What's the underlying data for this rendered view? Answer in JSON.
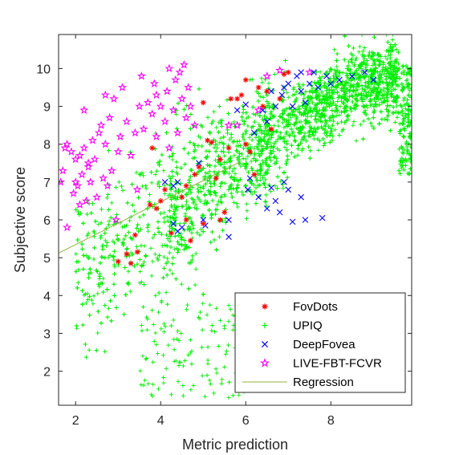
{
  "chart_data": {
    "type": "scatter",
    "xlabel": "Metric prediction",
    "ylabel": "Subjective score",
    "xlim": [
      1.6,
      9.9
    ],
    "ylim": [
      1.1,
      10.9
    ],
    "xticks": [
      2,
      4,
      6,
      8
    ],
    "yticks": [
      2,
      3,
      4,
      5,
      6,
      7,
      8,
      9,
      10
    ],
    "grid": false,
    "legend_position": "bottom-right",
    "series": [
      {
        "name": "FovDots",
        "marker": "asterisk",
        "color": "#ff0000",
        "points": [
          [
            3.0,
            4.9
          ],
          [
            3.2,
            5.1
          ],
          [
            3.3,
            4.85
          ],
          [
            3.45,
            5.15
          ],
          [
            3.4,
            5.6
          ],
          [
            3.75,
            6.4
          ],
          [
            3.8,
            7.9
          ],
          [
            4.0,
            6.5
          ],
          [
            4.1,
            6.8
          ],
          [
            4.25,
            5.65
          ],
          [
            4.5,
            6.6
          ],
          [
            4.6,
            6.9
          ],
          [
            4.7,
            5.45
          ],
          [
            4.9,
            7.4
          ],
          [
            5.0,
            9.1
          ],
          [
            5.1,
            8.1
          ],
          [
            5.2,
            8.05
          ],
          [
            5.3,
            7.1
          ],
          [
            5.4,
            7.6
          ],
          [
            5.6,
            7.9
          ],
          [
            5.65,
            9.2
          ],
          [
            5.8,
            9.2
          ],
          [
            5.9,
            9.3
          ],
          [
            6.0,
            9.7
          ],
          [
            6.1,
            7.8
          ],
          [
            6.2,
            7.2
          ],
          [
            6.3,
            9.5
          ],
          [
            6.4,
            9.0
          ],
          [
            6.5,
            9.4
          ],
          [
            6.6,
            8.4
          ],
          [
            6.8,
            9.2
          ],
          [
            7.0,
            9.9
          ],
          [
            6.9,
            9.85
          ],
          [
            5.4,
            6.0
          ],
          [
            5.0,
            5.9
          ],
          [
            4.6,
            6.0
          ],
          [
            4.8,
            7.2
          ],
          [
            5.5,
            6.2
          ],
          [
            6.0,
            8.0
          ],
          [
            3.9,
            6.3
          ]
        ]
      },
      {
        "name": "UPIQ",
        "marker": "plus",
        "color": "#00ee00",
        "points": []
      },
      {
        "name": "DeepFovea",
        "marker": "x",
        "color": "#0000ff",
        "points": [
          [
            4.1,
            7.0
          ],
          [
            4.3,
            6.9
          ],
          [
            4.3,
            5.9
          ],
          [
            4.4,
            5.7
          ],
          [
            4.5,
            5.8
          ],
          [
            4.4,
            7.0
          ],
          [
            4.9,
            7.5
          ],
          [
            5.0,
            6.0
          ],
          [
            5.05,
            5.85
          ],
          [
            5.6,
            5.55
          ],
          [
            5.6,
            6.0
          ],
          [
            6.05,
            6.8
          ],
          [
            6.1,
            7.1
          ],
          [
            6.3,
            6.6
          ],
          [
            6.5,
            6.3
          ],
          [
            6.6,
            6.85
          ],
          [
            6.7,
            6.5
          ],
          [
            6.8,
            6.2
          ],
          [
            6.9,
            7.0
          ],
          [
            7.0,
            6.8
          ],
          [
            7.1,
            5.95
          ],
          [
            7.3,
            6.6
          ],
          [
            7.4,
            6.0
          ],
          [
            7.8,
            6.05
          ],
          [
            6.2,
            8.3
          ],
          [
            6.4,
            8.9
          ],
          [
            6.6,
            9.4
          ],
          [
            6.7,
            9.0
          ],
          [
            6.85,
            9.3
          ],
          [
            7.0,
            9.6
          ],
          [
            7.1,
            9.0
          ],
          [
            7.2,
            9.8
          ],
          [
            7.3,
            9.4
          ],
          [
            7.4,
            9.1
          ],
          [
            7.5,
            9.6
          ],
          [
            7.6,
            9.9
          ],
          [
            7.7,
            9.5
          ],
          [
            7.9,
            9.8
          ],
          [
            8.0,
            9.6
          ],
          [
            8.2,
            9.7
          ],
          [
            8.5,
            9.8
          ],
          [
            8.8,
            9.9
          ],
          [
            9.0,
            9.7
          ],
          [
            5.8,
            8.9
          ],
          [
            6.0,
            9.05
          ],
          [
            6.9,
            9.5
          ],
          [
            7.3,
            9.9
          ],
          [
            6.5,
            8.6
          ]
        ]
      },
      {
        "name": "LIVE-FBT-FCVR",
        "marker": "star",
        "color": "#ff00ff",
        "points": [
          [
            1.65,
            7.0
          ],
          [
            1.7,
            7.3
          ],
          [
            1.75,
            7.9
          ],
          [
            1.8,
            8.0
          ],
          [
            1.8,
            5.8
          ],
          [
            1.9,
            7.8
          ],
          [
            1.95,
            6.7
          ],
          [
            2.0,
            7.0
          ],
          [
            2.0,
            7.6
          ],
          [
            2.05,
            6.9
          ],
          [
            2.1,
            7.7
          ],
          [
            2.15,
            7.2
          ],
          [
            2.2,
            7.9
          ],
          [
            2.2,
            8.9
          ],
          [
            2.25,
            6.5
          ],
          [
            2.3,
            7.4
          ],
          [
            2.35,
            7.0
          ],
          [
            2.4,
            8.1
          ],
          [
            2.45,
            7.6
          ],
          [
            2.5,
            6.6
          ],
          [
            2.55,
            8.3
          ],
          [
            2.6,
            8.5
          ],
          [
            2.65,
            7.1
          ],
          [
            2.7,
            8.0
          ],
          [
            2.75,
            6.9
          ],
          [
            2.8,
            8.7
          ],
          [
            2.85,
            7.3
          ],
          [
            2.9,
            9.2
          ],
          [
            2.95,
            6.0
          ],
          [
            3.0,
            7.8
          ],
          [
            3.05,
            8.2
          ],
          [
            3.1,
            9.5
          ],
          [
            3.2,
            8.6
          ],
          [
            3.3,
            7.7
          ],
          [
            3.4,
            8.3
          ],
          [
            3.45,
            6.8
          ],
          [
            3.5,
            9.0
          ],
          [
            3.55,
            9.8
          ],
          [
            3.6,
            8.4
          ],
          [
            3.7,
            9.1
          ],
          [
            3.8,
            8.8
          ],
          [
            3.85,
            9.6
          ],
          [
            3.9,
            8.2
          ],
          [
            4.0,
            9.0
          ],
          [
            4.1,
            8.6
          ],
          [
            4.15,
            9.4
          ],
          [
            4.2,
            10.0
          ],
          [
            4.3,
            8.9
          ],
          [
            4.35,
            9.7
          ],
          [
            4.4,
            8.3
          ],
          [
            4.5,
            9.2
          ],
          [
            4.55,
            10.1
          ],
          [
            4.6,
            8.7
          ],
          [
            4.65,
            9.5
          ],
          [
            4.7,
            9.0
          ],
          [
            4.8,
            8.5
          ],
          [
            4.2,
            7.9
          ],
          [
            2.7,
            9.3
          ],
          [
            2.3,
            7.5
          ],
          [
            2.1,
            6.4
          ],
          [
            3.9,
            9.3
          ],
          [
            4.45,
            9.9
          ],
          [
            5.6,
            8.5
          ],
          [
            5.8,
            8.5
          ],
          [
            6.3,
            8.9
          ],
          [
            6.5,
            9.8
          ],
          [
            6.8,
            9.95
          ],
          [
            7.5,
            9.9
          ]
        ]
      },
      {
        "name": "Regression",
        "marker": "line",
        "color": "#8fb53a",
        "points": [
          [
            1.6,
            5.12
          ],
          [
            5.9,
            7.55
          ]
        ]
      }
    ]
  }
}
